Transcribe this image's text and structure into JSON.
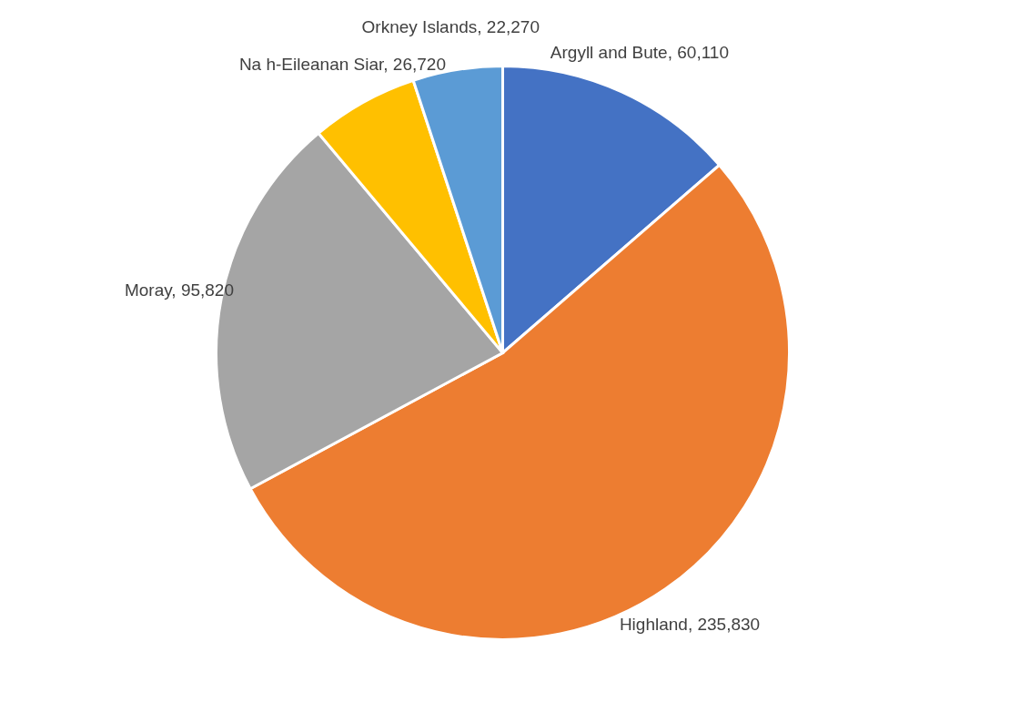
{
  "chart_data": {
    "type": "pie",
    "categories": [
      "Argyll and Bute",
      "Highland",
      "Moray",
      "Na h-Eileanan Siar",
      "Orkney Islands"
    ],
    "values": [
      60110,
      235830,
      95820,
      26720,
      22270
    ],
    "value_labels": [
      "60,110",
      "235,830",
      "95,820",
      "26,720",
      "22,270"
    ],
    "colors": [
      "#4472c4",
      "#ed7d31",
      "#a5a5a5",
      "#ffc000",
      "#5b9bd5"
    ]
  }
}
